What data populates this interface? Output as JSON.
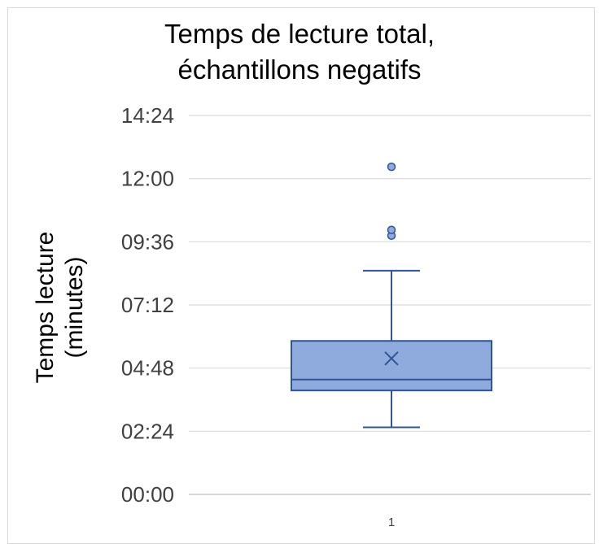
{
  "chart_data": {
    "type": "box",
    "title_lines": [
      "Temps de lecture total,",
      "échantillons negatifs"
    ],
    "ylabel_lines": [
      "Temps lecture",
      "(minutes)"
    ],
    "ylim": [
      0,
      864
    ],
    "yticks": [
      0,
      144,
      288,
      432,
      576,
      720,
      864
    ],
    "ytick_labels": [
      "00:00",
      "02:24",
      "04:48",
      "07:12",
      "09:36",
      "12:00",
      "14:24"
    ],
    "categories": [
      "1"
    ],
    "grid": true,
    "box": {
      "whisker_low": 153,
      "q1": 237,
      "median": 262,
      "q3": 350,
      "whisker_high": 510,
      "mean": 310,
      "outliers": [
        590,
        603,
        747
      ]
    },
    "colors": {
      "box_fill": "#8faadc",
      "box_stroke": "#2f5597",
      "grid": "#d9d9d9",
      "axis": "#bfbfbf"
    }
  }
}
